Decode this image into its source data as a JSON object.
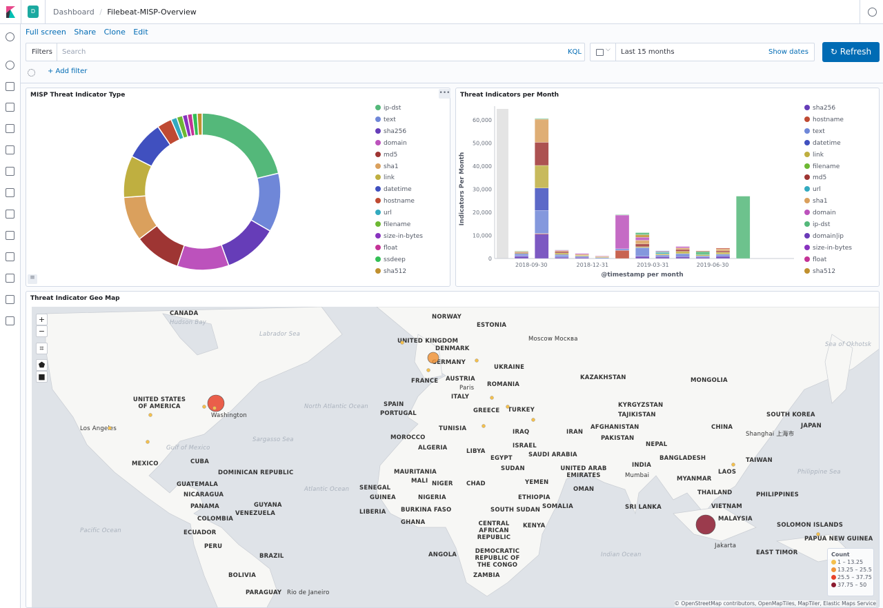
{
  "header": {
    "space_letter": "D",
    "breadcrumb": [
      "Dashboard",
      "Filebeat-MISP-Overview"
    ]
  },
  "menu": {
    "full_screen": "Full screen",
    "share": "Share",
    "clone": "Clone",
    "edit": "Edit"
  },
  "query": {
    "filters_label": "Filters",
    "search_placeholder": "Search",
    "kql": "KQL",
    "time_range": "Last 15 months",
    "show_dates": "Show dates",
    "refresh": "Refresh",
    "add_filter": "+ Add filter"
  },
  "sidebar_icons": [
    "clock-icon",
    "compass-icon",
    "chart-icon",
    "dashboard-icon",
    "canvas-icon",
    "maps-icon",
    "ml-icon",
    "infrastructure-icon",
    "logs-icon",
    "apm-icon",
    "uptime-icon",
    "dev-tools-icon",
    "monitoring-icon",
    "gear-icon"
  ],
  "colors": {
    "accent": "#006bb4",
    "refresh_bg": "#006bb4",
    "space": "#1ba9a0"
  },
  "donut": {
    "title": "MISP Threat Indicator Type",
    "chart_data": {
      "type": "pie",
      "donut": true,
      "slices": [
        {
          "label": "ip-dst",
          "value": 21,
          "color": "#54b87a"
        },
        {
          "label": "text",
          "value": 12,
          "color": "#6f87d8"
        },
        {
          "label": "sha256",
          "value": 11,
          "color": "#663db8"
        },
        {
          "label": "domain",
          "value": 10.5,
          "color": "#bc52bc"
        },
        {
          "label": "md5",
          "value": 9.5,
          "color": "#9e3533"
        },
        {
          "label": "sha1",
          "value": 9,
          "color": "#daa05d"
        },
        {
          "label": "link",
          "value": 8.5,
          "color": "#bfaf40"
        },
        {
          "label": "datetime",
          "value": 8,
          "color": "#4050bf"
        },
        {
          "label": "hostname",
          "value": 3,
          "color": "#bf4a33"
        },
        {
          "label": "url",
          "value": 1.2,
          "color": "#33aabf"
        },
        {
          "label": "filename",
          "value": 1.2,
          "color": "#6db833"
        },
        {
          "label": "size-in-bytes",
          "value": 1,
          "color": "#8833bf"
        },
        {
          "label": "float",
          "value": 1,
          "color": "#c43396"
        },
        {
          "label": "ssdeep",
          "value": 1,
          "color": "#33bf55"
        },
        {
          "label": "sha512",
          "value": 1,
          "color": "#c0902f"
        }
      ]
    }
  },
  "bars": {
    "title": "Threat Indicators per Month",
    "chart_data": {
      "type": "bar",
      "stacked": true,
      "xlabel": "@timestamp per month",
      "ylabel": "Indicators Per Month",
      "ylim": [
        0,
        65000
      ],
      "yticks": [
        0,
        10000,
        20000,
        30000,
        40000,
        50000,
        60000
      ],
      "xticks": [
        "2018-09-30",
        "2018-12-31",
        "2019-03-31",
        "2019-06-30"
      ],
      "legend": [
        {
          "label": "sha256",
          "color": "#663db8"
        },
        {
          "label": "hostname",
          "color": "#bf4a33"
        },
        {
          "label": "text",
          "color": "#6f87d8"
        },
        {
          "label": "datetime",
          "color": "#4050bf"
        },
        {
          "label": "link",
          "color": "#bfaf40"
        },
        {
          "label": "filename",
          "color": "#6db833"
        },
        {
          "label": "md5",
          "color": "#9e3533"
        },
        {
          "label": "url",
          "color": "#33aabf"
        },
        {
          "label": "sha1",
          "color": "#daa05d"
        },
        {
          "label": "domain",
          "color": "#bc52bc"
        },
        {
          "label": "ip-dst",
          "color": "#54b87a"
        },
        {
          "label": "domain|ip",
          "color": "#6a3ab8"
        },
        {
          "label": "size-in-bytes",
          "color": "#8833bf"
        },
        {
          "label": "float",
          "color": "#c43396"
        },
        {
          "label": "sha512",
          "color": "#c0902f"
        }
      ],
      "bars": [
        {
          "month": "2018-08",
          "stack": [
            [
              "sha256",
              1000
            ],
            [
              "text",
              700
            ],
            [
              "datetime",
              400
            ],
            [
              "link",
              400
            ],
            [
              "md5",
              300
            ],
            [
              "sha1",
              300
            ],
            [
              "ip-dst",
              200
            ]
          ]
        },
        {
          "month": "2018-09",
          "stack": [
            [
              "sha256",
              10500
            ],
            [
              "hostname",
              300
            ],
            [
              "text",
              10000
            ],
            [
              "datetime",
              9700
            ],
            [
              "link",
              9800
            ],
            [
              "md5",
              10000
            ],
            [
              "sha1",
              10000
            ],
            [
              "ip-dst",
              300
            ]
          ]
        },
        {
          "month": "2018-10",
          "stack": [
            [
              "sha256",
              600
            ],
            [
              "text",
              800
            ],
            [
              "datetime",
              300
            ],
            [
              "link",
              700
            ],
            [
              "md5",
              600
            ],
            [
              "sha1",
              400
            ],
            [
              "domain",
              300
            ],
            [
              "ip-dst",
              100
            ]
          ]
        },
        {
          "month": "2018-11",
          "stack": [
            [
              "sha256",
              500
            ],
            [
              "text",
              500
            ],
            [
              "link",
              400
            ],
            [
              "sha1",
              400
            ],
            [
              "domain",
              400
            ]
          ]
        },
        {
          "month": "2018-12",
          "stack": [
            [
              "text",
              400
            ],
            [
              "link",
              300
            ],
            [
              "sha1",
              300
            ],
            [
              "domain",
              200
            ]
          ]
        },
        {
          "month": "2019-01",
          "stack": [
            [
              "hostname",
              3500
            ],
            [
              "text",
              700
            ],
            [
              "domain",
              14600
            ],
            [
              "ip-dst",
              200
            ]
          ]
        },
        {
          "month": "2019-02",
          "stack": [
            [
              "sha256",
              1000
            ],
            [
              "text",
              3700
            ],
            [
              "link",
              400
            ],
            [
              "md5",
              1200
            ],
            [
              "sha1",
              1600
            ],
            [
              "domain",
              1300
            ],
            [
              "sha512",
              1100
            ],
            [
              "ip-dst",
              900
            ]
          ]
        },
        {
          "month": "2019-03",
          "stack": [
            [
              "sha256",
              800
            ],
            [
              "text",
              700
            ],
            [
              "link",
              500
            ],
            [
              "url",
              700
            ],
            [
              "sha1",
              300
            ],
            [
              "datetime",
              300
            ]
          ]
        },
        {
          "month": "2019-04",
          "stack": [
            [
              "sha256",
              800
            ],
            [
              "text",
              1300
            ],
            [
              "link",
              1000
            ],
            [
              "md5",
              800
            ],
            [
              "sha1",
              700
            ],
            [
              "domain",
              600
            ]
          ]
        },
        {
          "month": "2019-05",
          "stack": [
            [
              "sha256",
              600
            ],
            [
              "text",
              500
            ],
            [
              "link",
              500
            ],
            [
              "ip-dst",
              1400
            ],
            [
              "hostname",
              300
            ]
          ]
        },
        {
          "month": "2019-06",
          "stack": [
            [
              "sha256",
              1000
            ],
            [
              "text",
              900
            ],
            [
              "link",
              800
            ],
            [
              "md5",
              600
            ],
            [
              "sha1",
              800
            ],
            [
              "hostname",
              400
            ]
          ]
        },
        {
          "month": "2019-07",
          "stack": [
            [
              "ip-dst",
              27000
            ]
          ]
        }
      ]
    }
  },
  "map": {
    "title": "Threat Indicator Geo Map",
    "zoom_in": "+",
    "zoom_out": "−",
    "legend_title": "Count",
    "legend": [
      {
        "label": "1 – 13.25",
        "color": "#f4c04d"
      },
      {
        "label": "13.25 – 25.5",
        "color": "#f0943a"
      },
      {
        "label": "25.5 – 37.75",
        "color": "#e8432c"
      },
      {
        "label": "37.75 – 50",
        "color": "#8b1a2f"
      }
    ],
    "attribution": "© OpenStreetMap contributors, OpenMapTiles, MapTiler, Elastic Maps Service",
    "labels": [
      "UNITED STATES OF AMERICA",
      "CANADA",
      "MEXICO",
      "CUBA",
      "COLOMBIA",
      "VENEZUELA",
      "PERU",
      "BRAZIL",
      "BOLIVIA",
      "ECUADOR",
      "PARAGUAY",
      "GUYANA",
      "UNITED KINGDOM",
      "FRANCE",
      "GERMANY",
      "SPAIN",
      "PORTUGAL",
      "ITALY",
      "NORWAY",
      "ESTONIA",
      "DENMARK",
      "UKRAINE",
      "ROMANIA",
      "GREECE",
      "TURKEY",
      "AUSTRIA",
      "KAZAKHSTAN",
      "MONGOLIA",
      "KYRGYZSTAN",
      "TAJIKISTAN",
      "AFGHANISTAN",
      "PAKISTAN",
      "IRAN",
      "IRAQ",
      "ISRAEL",
      "SAUDI ARABIA",
      "UNITED ARAB EMIRATES",
      "YEMEN",
      "OMAN",
      "EGYPT",
      "LIBYA",
      "ALGERIA",
      "MOROCCO",
      "TUNISIA",
      "MAURITANIA",
      "MALI",
      "NIGER",
      "CHAD",
      "SUDAN",
      "NIGERIA",
      "ETHIOPIA",
      "SOMALIA",
      "KENYA",
      "SOUTH SUDAN",
      "CENTRAL AFRICAN REPUBLIC",
      "DEMOCRATIC REPUBLIC OF THE CONGO",
      "ANGOLA",
      "ZAMBIA",
      "SENEGAL",
      "GUINEA",
      "LIBERIA",
      "BURKINA FASO",
      "GHANA",
      "CHINA",
      "INDIA",
      "NEPAL",
      "BANGLADESH",
      "MYANMAR",
      "THAILAND",
      "LAOS",
      "VIETNAM",
      "PHILIPPINES",
      "MALAYSIA",
      "SRI LANKA",
      "SOUTH KOREA",
      "JAPAN",
      "TAIWAN",
      "PAPUA NEW GUINEA",
      "EAST TIMOR",
      "SOLOMON ISLANDS",
      "GUATEMALA",
      "NICARAGUA",
      "PANAMA",
      "DOMINICAN REPUBLIC",
      "Washington",
      "Los Angeles",
      "Paris",
      "Moscow Москва",
      "Shanghai 上海市",
      "Mumbai",
      "Jakarta",
      "Rio de Janeiro",
      "Hudson Bay",
      "Labrador Sea",
      "North Atlantic Ocean",
      "Sargasso Sea",
      "Gulf of Mexico",
      "Atlantic Ocean",
      "Pacific Ocean",
      "Indian Ocean",
      "Sea of Okhotsk",
      "Philippine Sea"
    ],
    "points": [
      {
        "name": "Washington",
        "count": 32,
        "color": "#e8432c"
      },
      {
        "name": "Germany",
        "count": 18,
        "color": "#f0943a"
      },
      {
        "name": "Malaysia",
        "count": 48,
        "color": "#8b1a2f"
      }
    ]
  }
}
